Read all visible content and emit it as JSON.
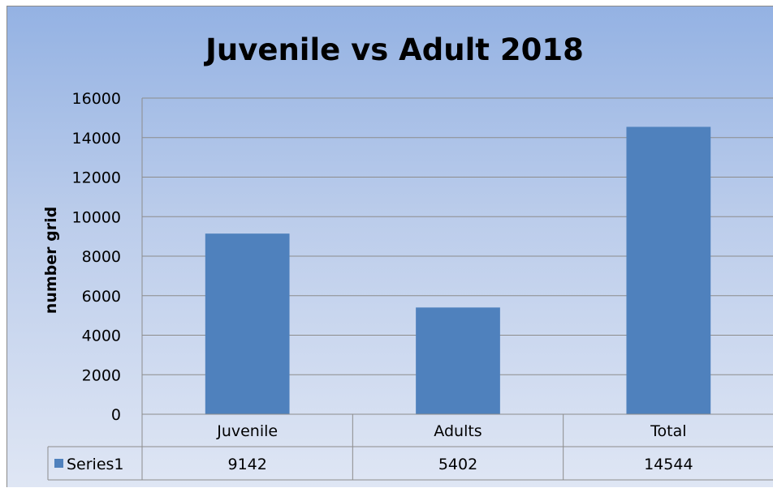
{
  "chart_data": {
    "type": "bar",
    "title": "Juvenile vs Adult 2018",
    "xlabel": "",
    "ylabel": "number grid",
    "categories": [
      "Juvenile",
      "Adults",
      "Total"
    ],
    "series": [
      {
        "name": "Series1",
        "values": [
          9142,
          5402,
          14544
        ]
      }
    ],
    "ylim": [
      0,
      16000
    ],
    "yticks": [
      "0",
      "2000",
      "4000",
      "6000",
      "8000",
      "10000",
      "12000",
      "14000",
      "16000"
    ],
    "data_table": true,
    "grid": true,
    "legend": "data-table-left"
  },
  "colors": {
    "bar": "#4f81bd",
    "grid": "#8c8c8c",
    "background_top": "#94b2e3",
    "background_bottom": "#dfe6f4"
  }
}
